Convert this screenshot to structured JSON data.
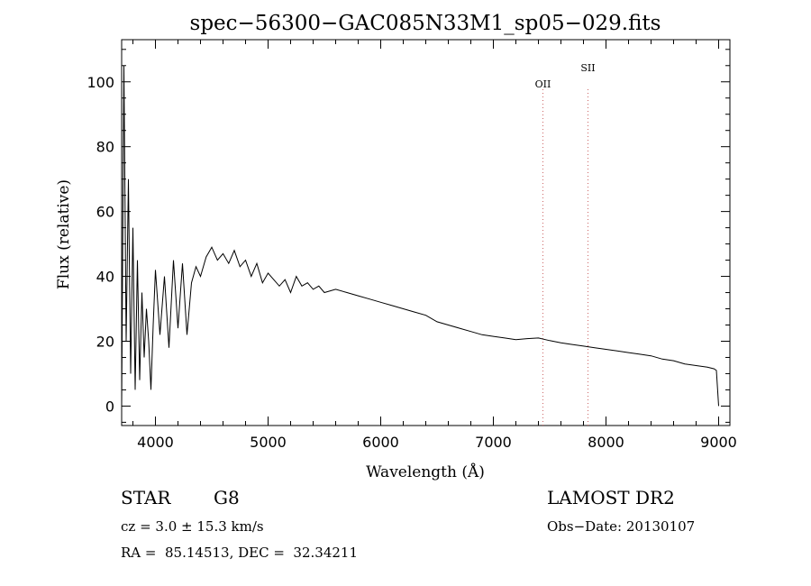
{
  "chart_data": {
    "type": "line",
    "title": "spec−56300−GAC085N33M1_sp05−029.fits",
    "xlabel": "Wavelength (Å)",
    "ylabel": "Flux (relative)",
    "xlim": [
      3700,
      9100
    ],
    "ylim": [
      -6,
      113
    ],
    "xticks": [
      4000,
      5000,
      6000,
      7000,
      8000,
      9000
    ],
    "yticks": [
      0,
      20,
      40,
      60,
      80,
      100
    ],
    "x": [
      3700,
      3720,
      3740,
      3760,
      3780,
      3800,
      3820,
      3840,
      3860,
      3880,
      3900,
      3920,
      3940,
      3960,
      3980,
      4000,
      4040,
      4080,
      4120,
      4160,
      4200,
      4240,
      4280,
      4320,
      4360,
      4400,
      4450,
      4500,
      4550,
      4600,
      4650,
      4700,
      4750,
      4800,
      4850,
      4900,
      4950,
      5000,
      5050,
      5100,
      5150,
      5200,
      5250,
      5300,
      5350,
      5400,
      5450,
      5500,
      5600,
      5700,
      5800,
      5900,
      6000,
      6100,
      6200,
      6300,
      6400,
      6500,
      6600,
      6700,
      6800,
      6900,
      7000,
      7100,
      7200,
      7300,
      7400,
      7500,
      7600,
      7700,
      7800,
      7900,
      8000,
      8100,
      8200,
      8300,
      8400,
      8500,
      8600,
      8700,
      8800,
      8900,
      8960,
      8980,
      9000
    ],
    "y": [
      0,
      105,
      20,
      70,
      10,
      55,
      5,
      45,
      8,
      35,
      15,
      30,
      20,
      5,
      25,
      42,
      22,
      40,
      18,
      45,
      24,
      44,
      22,
      38,
      43,
      40,
      46,
      49,
      45,
      47,
      44,
      48,
      43,
      45,
      40,
      44,
      38,
      41,
      39,
      37,
      39,
      35,
      40,
      37,
      38,
      36,
      37,
      35,
      36,
      35,
      34,
      33,
      32,
      31,
      30,
      29,
      28,
      26,
      25,
      24,
      23,
      22,
      21.5,
      21,
      20.5,
      20.8,
      21,
      20.2,
      19.5,
      19,
      18.5,
      18,
      17.5,
      17,
      16.5,
      16,
      15.5,
      14.5,
      14,
      13,
      12.5,
      12,
      11.5,
      11,
      0
    ],
    "lines": [
      {
        "name": "OII",
        "x": 7440
      },
      {
        "name": "SII",
        "x": 7840
      }
    ]
  },
  "info": {
    "object_type": "STAR",
    "subclass": "G8",
    "survey": "LAMOST DR2",
    "cz": "cz = 3.0 ± 15.3 km/s",
    "obs_date": "Obs−Date: 20130107",
    "coords": "RA =  85.14513, DEC =  32.34211"
  }
}
